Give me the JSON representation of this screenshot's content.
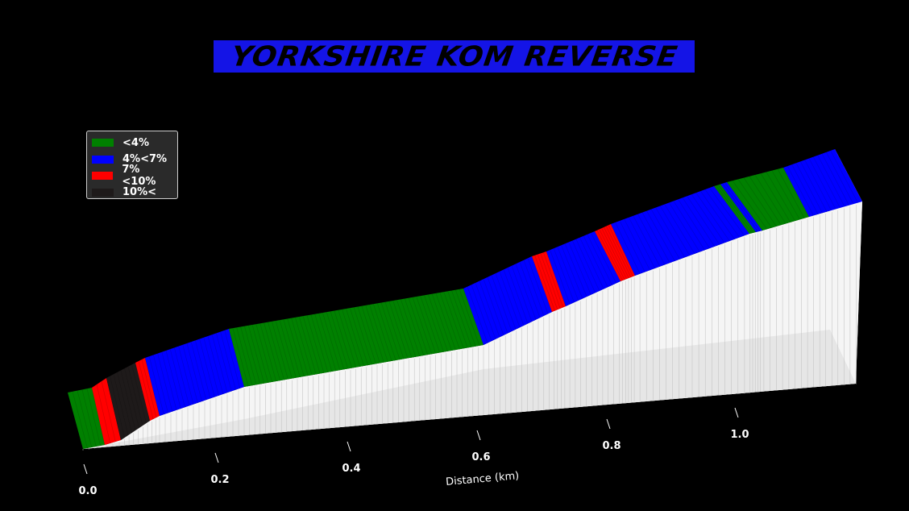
{
  "chart_data": {
    "type": "area",
    "title": "YORKSHIRE KOM REVERSE",
    "xlabel": "Distance (km)",
    "x_ticks": [
      "0.0",
      "0.2",
      "0.4",
      "0.6",
      "0.8",
      "1.0"
    ],
    "xlim": [
      0,
      1.16
    ],
    "legend": {
      "placement": "upper-left",
      "entries": [
        {
          "label": "<4%",
          "color": "#008000"
        },
        {
          "label": "4%<7%",
          "color": "#0000ff"
        },
        {
          "label": "7%<10%",
          "color": "#ff0000"
        },
        {
          "label": "10%<",
          "color": "#1e1a1a"
        }
      ]
    },
    "segments": [
      {
        "start": 0.0,
        "end": 0.03,
        "category": "<4%"
      },
      {
        "start": 0.03,
        "end": 0.05,
        "category": "7%<10%"
      },
      {
        "start": 0.05,
        "end": 0.1,
        "category": "10%<"
      },
      {
        "start": 0.1,
        "end": 0.12,
        "category": "7%<10%"
      },
      {
        "start": 0.12,
        "end": 0.24,
        "category": "4%<7%"
      },
      {
        "start": 0.24,
        "end": 0.6,
        "category": "<4%"
      },
      {
        "start": 0.6,
        "end": 0.7,
        "category": "4%<7%"
      },
      {
        "start": 0.7,
        "end": 0.73,
        "category": "7%<10%"
      },
      {
        "start": 0.73,
        "end": 0.81,
        "category": "4%<7%"
      },
      {
        "start": 0.81,
        "end": 0.85,
        "category": "7%<10%"
      },
      {
        "start": 0.85,
        "end": 0.99,
        "category": "4%<7%"
      },
      {
        "start": 0.99,
        "end": 1.01,
        "category": "<4%"
      },
      {
        "start": 1.01,
        "end": 1.03,
        "category": "4%<7%"
      },
      {
        "start": 1.03,
        "end": 1.09,
        "category": "<4%"
      },
      {
        "start": 1.09,
        "end": 1.16,
        "category": "4%<7%"
      }
    ]
  }
}
